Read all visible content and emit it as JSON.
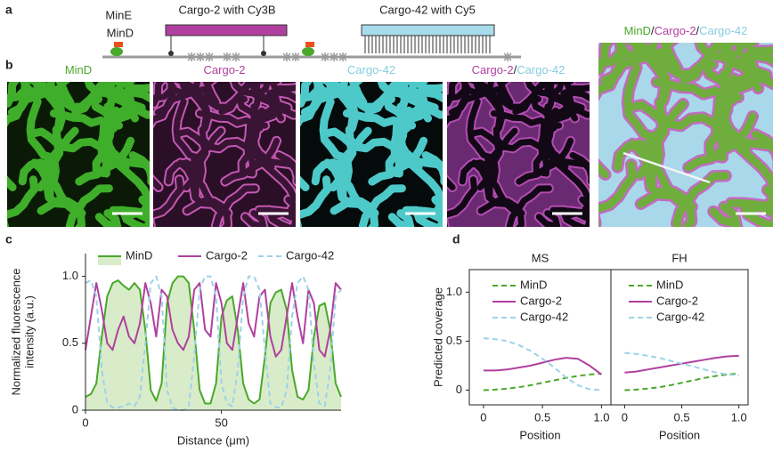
{
  "panel_labels": [
    "a",
    "b",
    "c",
    "d"
  ],
  "schematic": {
    "mine": "MinE",
    "mind": "MinD",
    "cargo2": "Cargo-2 with Cy3B",
    "cargo42": "Cargo-42 with Cy5",
    "mine_color": "#e8501e",
    "mind_color": "#4aa82a",
    "cargo2_color": "#b0409f",
    "cargo42_color": "#86cde0"
  },
  "micrographs": [
    {
      "title": [
        {
          "text": "MinD",
          "color": "#4aa82a"
        }
      ]
    },
    {
      "title": [
        {
          "text": "Cargo-2",
          "color": "#b0409f"
        }
      ]
    },
    {
      "title": [
        {
          "text": "Cargo-42",
          "color": "#86cde0"
        }
      ]
    },
    {
      "title": [
        {
          "text": "Cargo-2",
          "color": "#b0409f"
        },
        {
          "text": "/",
          "color": "#222222"
        },
        {
          "text": "Cargo-42",
          "color": "#86cde0"
        }
      ]
    },
    {
      "title": [
        {
          "text": "MinD",
          "color": "#4aa82a"
        },
        {
          "text": "/",
          "color": "#222222"
        },
        {
          "text": "Cargo-2",
          "color": "#b0409f"
        },
        {
          "text": "/",
          "color": "#222222"
        },
        {
          "text": "Cargo-42",
          "color": "#86cde0"
        }
      ]
    }
  ],
  "chart_data": [
    {
      "type": "line",
      "xlabel": "Distance (μm)",
      "ylabel": [
        "Normalized fluorescence",
        "intensity (a.u.)"
      ],
      "x": [
        0,
        2,
        4,
        6,
        8,
        10,
        12,
        14,
        16,
        18,
        20,
        22,
        24,
        26,
        28,
        30,
        32,
        34,
        36,
        38,
        40,
        42,
        44,
        46,
        48,
        50,
        52,
        54,
        56,
        58,
        60,
        62,
        64,
        66,
        68,
        70,
        72,
        74,
        76,
        78,
        80,
        82,
        84,
        86,
        88,
        90,
        92,
        94
      ],
      "series": [
        {
          "name": "MinD",
          "color": "#4aa82a",
          "dash": "solid",
          "fill": "#d9ecc9",
          "values": [
            0.1,
            0.12,
            0.2,
            0.55,
            0.85,
            0.95,
            0.97,
            0.93,
            0.9,
            0.95,
            0.9,
            0.6,
            0.15,
            0.07,
            0.2,
            0.8,
            0.95,
            1.0,
            1.0,
            0.95,
            0.6,
            0.15,
            0.05,
            0.05,
            0.2,
            0.7,
            0.82,
            0.85,
            0.6,
            0.2,
            0.08,
            0.05,
            0.08,
            0.4,
            0.8,
            0.88,
            0.9,
            0.75,
            0.3,
            0.1,
            0.08,
            0.15,
            0.55,
            0.78,
            0.8,
            0.6,
            0.2,
            0.1
          ]
        },
        {
          "name": "Cargo-2",
          "color": "#b0409f",
          "dash": "solid",
          "values": [
            0.45,
            0.7,
            0.95,
            0.75,
            0.5,
            0.45,
            0.6,
            0.7,
            0.55,
            0.5,
            0.65,
            0.95,
            0.8,
            0.55,
            0.9,
            0.85,
            0.6,
            0.5,
            0.45,
            0.55,
            0.9,
            0.95,
            0.6,
            0.55,
            0.95,
            0.8,
            0.5,
            0.45,
            0.7,
            0.95,
            0.65,
            0.55,
            0.85,
            0.9,
            0.55,
            0.4,
            0.45,
            0.7,
            0.95,
            0.7,
            0.5,
            0.9,
            0.8,
            0.45,
            0.4,
            0.6,
            0.95,
            0.9
          ]
        },
        {
          "name": "Cargo-42",
          "color": "#9dd3e8",
          "dash": "dashed",
          "values": [
            0.95,
            0.97,
            0.85,
            0.3,
            0.05,
            0.02,
            0.02,
            0.03,
            0.05,
            0.03,
            0.1,
            0.5,
            0.95,
            1.0,
            0.85,
            0.15,
            0.02,
            0.0,
            0.0,
            0.03,
            0.4,
            0.9,
            1.0,
            1.0,
            0.85,
            0.2,
            0.05,
            0.03,
            0.3,
            0.85,
            1.0,
            1.0,
            0.9,
            0.45,
            0.05,
            0.02,
            0.02,
            0.15,
            0.7,
            0.95,
            1.0,
            0.9,
            0.35,
            0.05,
            0.03,
            0.3,
            0.85,
            0.9
          ]
        }
      ],
      "xlim": [
        0,
        94
      ],
      "ylim": [
        0,
        1.17
      ],
      "xticks": [
        0,
        50
      ],
      "yticks": [
        0,
        0.5,
        {
          "value": 1,
          "label": "1.0"
        }
      ],
      "box": false,
      "legend": "top"
    },
    {
      "type": "line",
      "title": "MS",
      "xlabel": "Position",
      "ylabel": [
        "Predicted coverage"
      ],
      "x": [
        0,
        0.1,
        0.2,
        0.3,
        0.4,
        0.5,
        0.6,
        0.7,
        0.8,
        0.9,
        1.0
      ],
      "series": [
        {
          "name": "MinD",
          "color": "#4aa82a",
          "dash": "dashed",
          "values": [
            0,
            0.005,
            0.015,
            0.03,
            0.05,
            0.075,
            0.1,
            0.125,
            0.145,
            0.16,
            0.17
          ]
        },
        {
          "name": "Cargo-2",
          "color": "#b0409f",
          "dash": "solid",
          "values": [
            0.2,
            0.2,
            0.21,
            0.23,
            0.25,
            0.28,
            0.31,
            0.33,
            0.32,
            0.25,
            0.16
          ]
        },
        {
          "name": "Cargo-42",
          "color": "#9dd3e8",
          "dash": "dashed",
          "values": [
            0.53,
            0.52,
            0.5,
            0.46,
            0.4,
            0.32,
            0.23,
            0.13,
            0.05,
            0.01,
            0.0
          ]
        }
      ],
      "xlim": [
        -0.12,
        1.08
      ],
      "ylim": [
        -0.15,
        1.23
      ],
      "xticks": [
        0,
        0.5,
        {
          "value": 1,
          "label": "1.0"
        }
      ],
      "yticks": [
        0,
        0.5,
        {
          "value": 1,
          "label": "1.0"
        }
      ],
      "box": true,
      "legend": "upper left"
    },
    {
      "type": "line",
      "title": "FH",
      "xlabel": "Position",
      "x": [
        0,
        0.1,
        0.2,
        0.3,
        0.4,
        0.5,
        0.6,
        0.7,
        0.8,
        0.9,
        1.0
      ],
      "series": [
        {
          "name": "MinD",
          "color": "#4aa82a",
          "dash": "dashed",
          "values": [
            0,
            0.005,
            0.015,
            0.03,
            0.05,
            0.075,
            0.1,
            0.125,
            0.145,
            0.16,
            0.17
          ]
        },
        {
          "name": "Cargo-2",
          "color": "#b0409f",
          "dash": "solid",
          "values": [
            0.18,
            0.19,
            0.21,
            0.23,
            0.25,
            0.27,
            0.29,
            0.31,
            0.33,
            0.345,
            0.35
          ]
        },
        {
          "name": "Cargo-42",
          "color": "#9dd3e8",
          "dash": "dashed",
          "values": [
            0.38,
            0.37,
            0.35,
            0.33,
            0.3,
            0.27,
            0.24,
            0.21,
            0.18,
            0.16,
            0.15
          ]
        }
      ],
      "xlim": [
        -0.12,
        1.08
      ],
      "ylim": [
        -0.15,
        1.23
      ],
      "xticks": [
        0,
        0.5,
        {
          "value": 1,
          "label": "1.0"
        }
      ],
      "box": true,
      "legend": "upper left"
    }
  ]
}
